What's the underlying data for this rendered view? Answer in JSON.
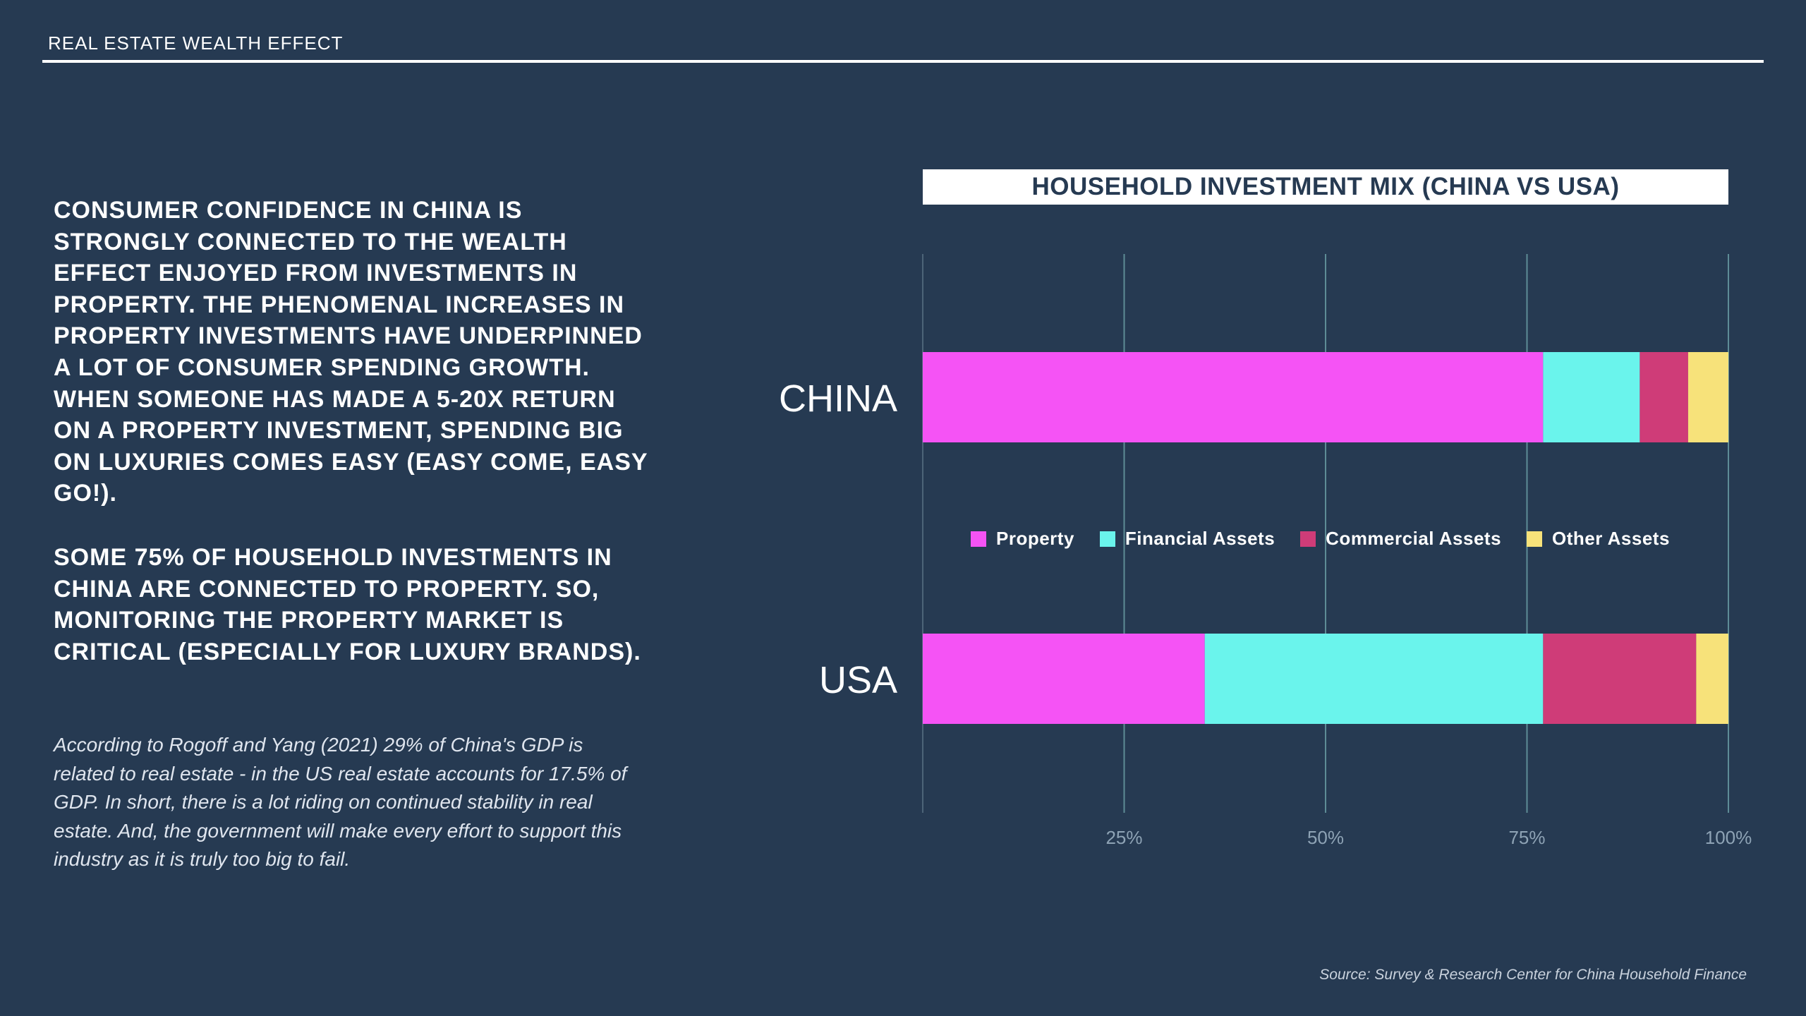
{
  "header": {
    "title": "REAL ESTATE WEALTH EFFECT"
  },
  "main": {
    "paragraph1": "CONSUMER CONFIDENCE IN CHINA IS STRONGLY CONNECTED TO THE WEALTH EFFECT ENJOYED FROM INVESTMENTS IN PROPERTY. THE PHENOMENAL INCREASES IN PROPERTY INVESTMENTS HAVE UNDERPINNED A LOT OF CONSUMER SPENDING GROWTH. WHEN SOMEONE HAS MADE A 5-20X RETURN ON A PROPERTY INVESTMENT, SPENDING BIG ON LUXURIES COMES EASY (EASY COME, EASY GO!).",
    "paragraph2": "SOME 75% OF HOUSEHOLD INVESTMENTS IN CHINA ARE CONNECTED TO PROPERTY. SO, MONITORING THE PROPERTY MARKET IS CRITICAL (ESPECIALLY FOR LUXURY BRANDS).",
    "note": "According to Rogoff and Yang (2021) 29% of China's GDP is related to real estate - in the US real estate accounts for 17.5% of GDP.  In short, there is a lot riding on continued stability in real estate. And, the government will make every effort to support this industry as it is truly too big to fail.",
    "source": "Source: Survey & Research Center for China Household Finance"
  },
  "colors": {
    "background": "#263a52",
    "property": "#f553f5",
    "financial": "#6af4ec",
    "commercial": "#cf3c78",
    "other": "#f7e27a",
    "gridline": "#5e8c96",
    "tick_label": "#8ea3b5"
  },
  "chart_data": {
    "type": "bar",
    "orientation": "horizontal",
    "stacked": true,
    "title": "HOUSEHOLD INVESTMENT MIX (CHINA VS USA)",
    "categories": [
      "CHINA",
      "USA"
    ],
    "series": [
      {
        "name": "Property",
        "values": [
          77,
          35
        ],
        "color": "#f553f5"
      },
      {
        "name": "Financial Assets",
        "values": [
          12,
          42
        ],
        "color": "#6af4ec"
      },
      {
        "name": "Commercial Assets",
        "values": [
          6,
          19
        ],
        "color": "#cf3c78"
      },
      {
        "name": "Other Assets",
        "values": [
          5,
          4
        ],
        "color": "#f7e27a"
      }
    ],
    "xlim": [
      0,
      100
    ],
    "x_ticks": [
      "25%",
      "50%",
      "75%",
      "100%"
    ],
    "x_tick_values": [
      25,
      50,
      75,
      100
    ],
    "grid": true,
    "legend_position": "center"
  }
}
